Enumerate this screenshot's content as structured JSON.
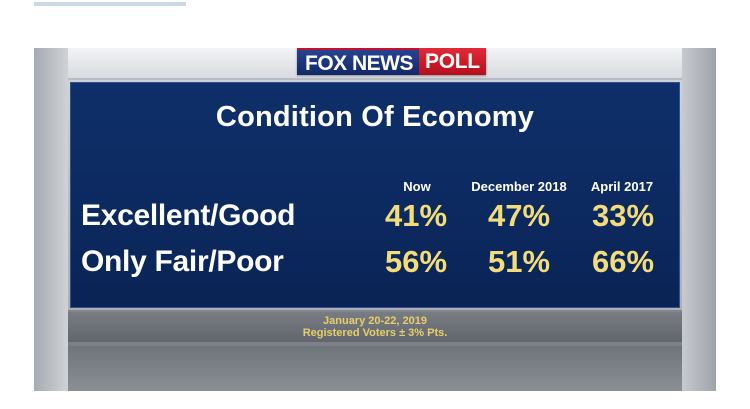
{
  "logo": {
    "network": "FOX NEWS",
    "product": "POLL"
  },
  "board": {
    "title": "Condition Of Economy",
    "columns": [
      "Now",
      "December 2018",
      "April 2017"
    ],
    "rows": [
      {
        "label": "Excellent/Good",
        "values": [
          "41%",
          "47%",
          "33%"
        ]
      },
      {
        "label": "Only Fair/Poor",
        "values": [
          "56%",
          "51%",
          "66%"
        ]
      }
    ]
  },
  "footer": {
    "date": "January 20-22, 2019",
    "note": "Registered Voters ± 3% Pts."
  },
  "colors": {
    "board_blue": "#0c2a60",
    "value_yellow": "#f3dc7a",
    "logo_red": "#c8102e"
  }
}
